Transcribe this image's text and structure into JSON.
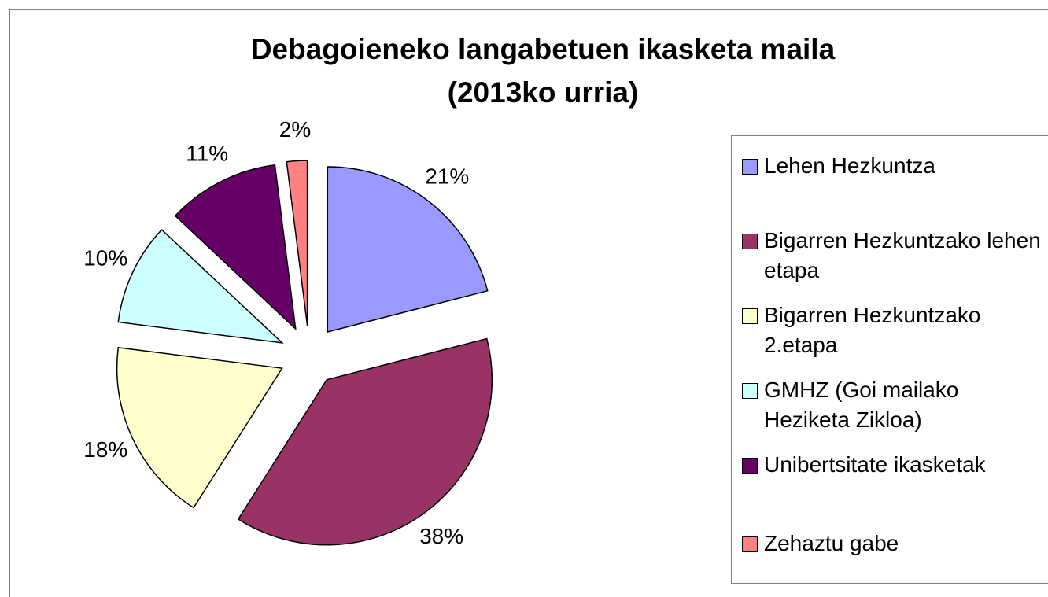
{
  "chart_data": {
    "type": "pie",
    "title": [
      "Debagoieneko langabetuen ikasketa maila",
      "(2013ko urria)"
    ],
    "categories": [
      "Lehen Hezkuntza",
      "Bigarren Hezkuntzako lehen etapa",
      "Bigarren Hezkuntzako 2.etapa",
      "GMHZ (Goi mailako Heziketa Zikloa)",
      "Unibertsitate ikasketak",
      "Zehaztu gabe"
    ],
    "values": [
      21,
      38,
      18,
      10,
      11,
      2
    ],
    "value_labels": [
      "21%",
      "38%",
      "18%",
      "10%",
      "11%",
      "2%"
    ],
    "colors": [
      "#9999ff",
      "#993366",
      "#ffffcc",
      "#ccffff",
      "#660066",
      "#ff8080"
    ],
    "legend": "right"
  }
}
